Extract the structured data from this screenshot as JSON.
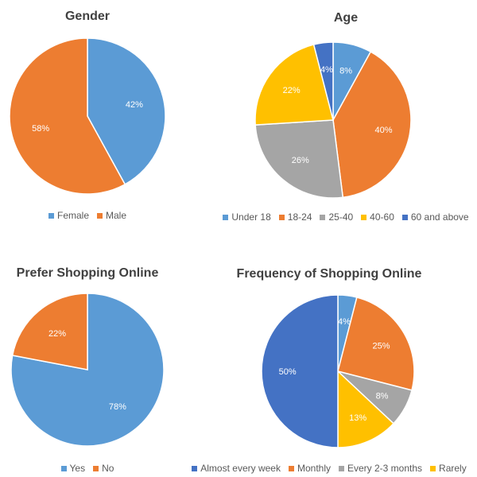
{
  "chart_data": [
    {
      "type": "pie",
      "title": "Gender",
      "categories": [
        "Female",
        "Male"
      ],
      "values": [
        42,
        58
      ],
      "value_labels": [
        "42%",
        "58%"
      ],
      "colors": [
        "#5B9BD5",
        "#ED7D31"
      ],
      "start_angle": 0,
      "legend": "bottom"
    },
    {
      "type": "pie",
      "title": "Age",
      "categories": [
        "Under 18",
        "18-24",
        "25-40",
        "40-60",
        "60 and above"
      ],
      "values": [
        8,
        40,
        26,
        22,
        4
      ],
      "value_labels": [
        "8%",
        "40%",
        "26%",
        "22%",
        "4%"
      ],
      "colors": [
        "#5B9BD5",
        "#ED7D31",
        "#A5A5A5",
        "#FFC000",
        "#4472C4"
      ],
      "start_angle": 0,
      "legend": "bottom"
    },
    {
      "type": "pie",
      "title": "Prefer Shopping Online",
      "categories": [
        "Yes",
        "No"
      ],
      "values": [
        78,
        22
      ],
      "value_labels": [
        "78%",
        "22%"
      ],
      "colors": [
        "#5B9BD5",
        "#ED7D31"
      ],
      "start_angle": 0,
      "legend": "bottom"
    },
    {
      "type": "pie",
      "title": "Frequency of Shopping Online",
      "categories": [
        "Almost every week",
        "Monthly",
        "Every 2-3 months",
        "Rarely",
        ""
      ],
      "values": [
        4,
        25,
        8,
        13,
        50
      ],
      "value_labels": [
        "4%",
        "25%",
        "8%",
        "13%",
        "50%"
      ],
      "colors": [
        "#5B9BD5",
        "#ED7D31",
        "#A5A5A5",
        "#FFC000",
        "#4472C4"
      ],
      "legend_categories": [
        "Almost every week",
        "Monthly",
        "Every 2-3 months",
        "Rarely"
      ],
      "legend_colors": [
        "#4472C4",
        "#ED7D31",
        "#A5A5A5",
        "#FFC000"
      ],
      "start_angle": 0,
      "legend": "bottom"
    }
  ]
}
